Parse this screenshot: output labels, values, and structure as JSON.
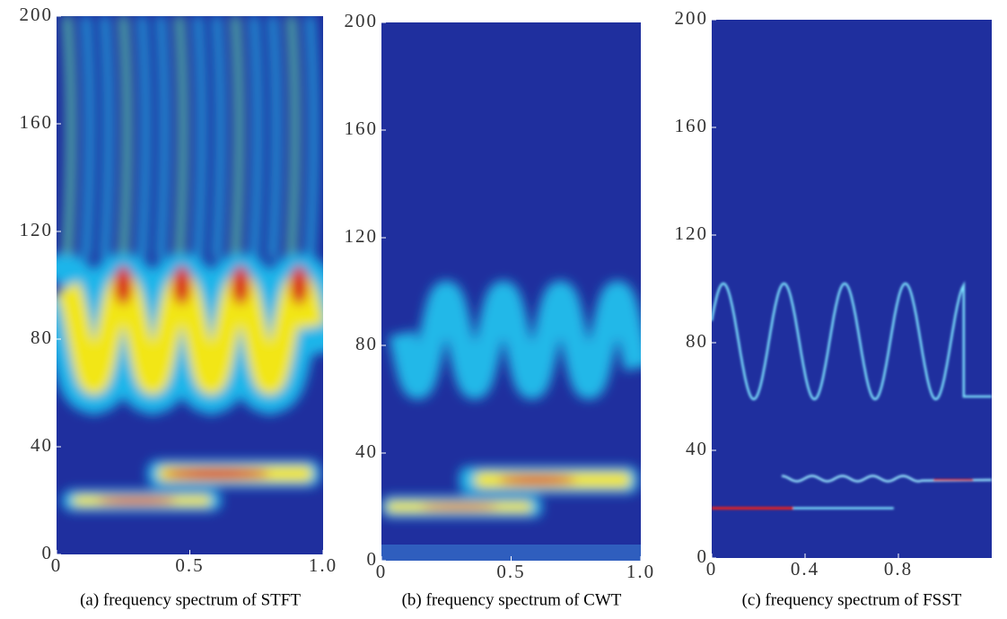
{
  "chart_data": [
    {
      "type": "heatmap",
      "caption": "(a) frequency spectrum of STFT",
      "xlim": [
        0,
        1
      ],
      "xticks": [
        0,
        0.5,
        {
          "value": 1,
          "label": "1.0"
        }
      ],
      "ylim": [
        0,
        200
      ],
      "yticks": [
        0,
        40,
        80,
        120,
        160,
        200
      ]
    },
    {
      "type": "heatmap",
      "caption": "(b) frequency spectrum of CWT",
      "xlim": [
        0,
        1
      ],
      "xticks": [
        0,
        0.5,
        {
          "value": 1,
          "label": "1.0"
        }
      ],
      "ylim": [
        0,
        200
      ],
      "yticks": [
        0,
        40,
        80,
        120,
        160,
        200
      ]
    },
    {
      "type": "heatmap",
      "caption": "(c) frequency spectrum of FSST",
      "xlim": [
        0,
        1.2
      ],
      "xticks": [
        0,
        0.4,
        0.8
      ],
      "ylim": [
        0,
        200
      ],
      "yticks": [
        0,
        40,
        80,
        120,
        160,
        200
      ]
    }
  ]
}
